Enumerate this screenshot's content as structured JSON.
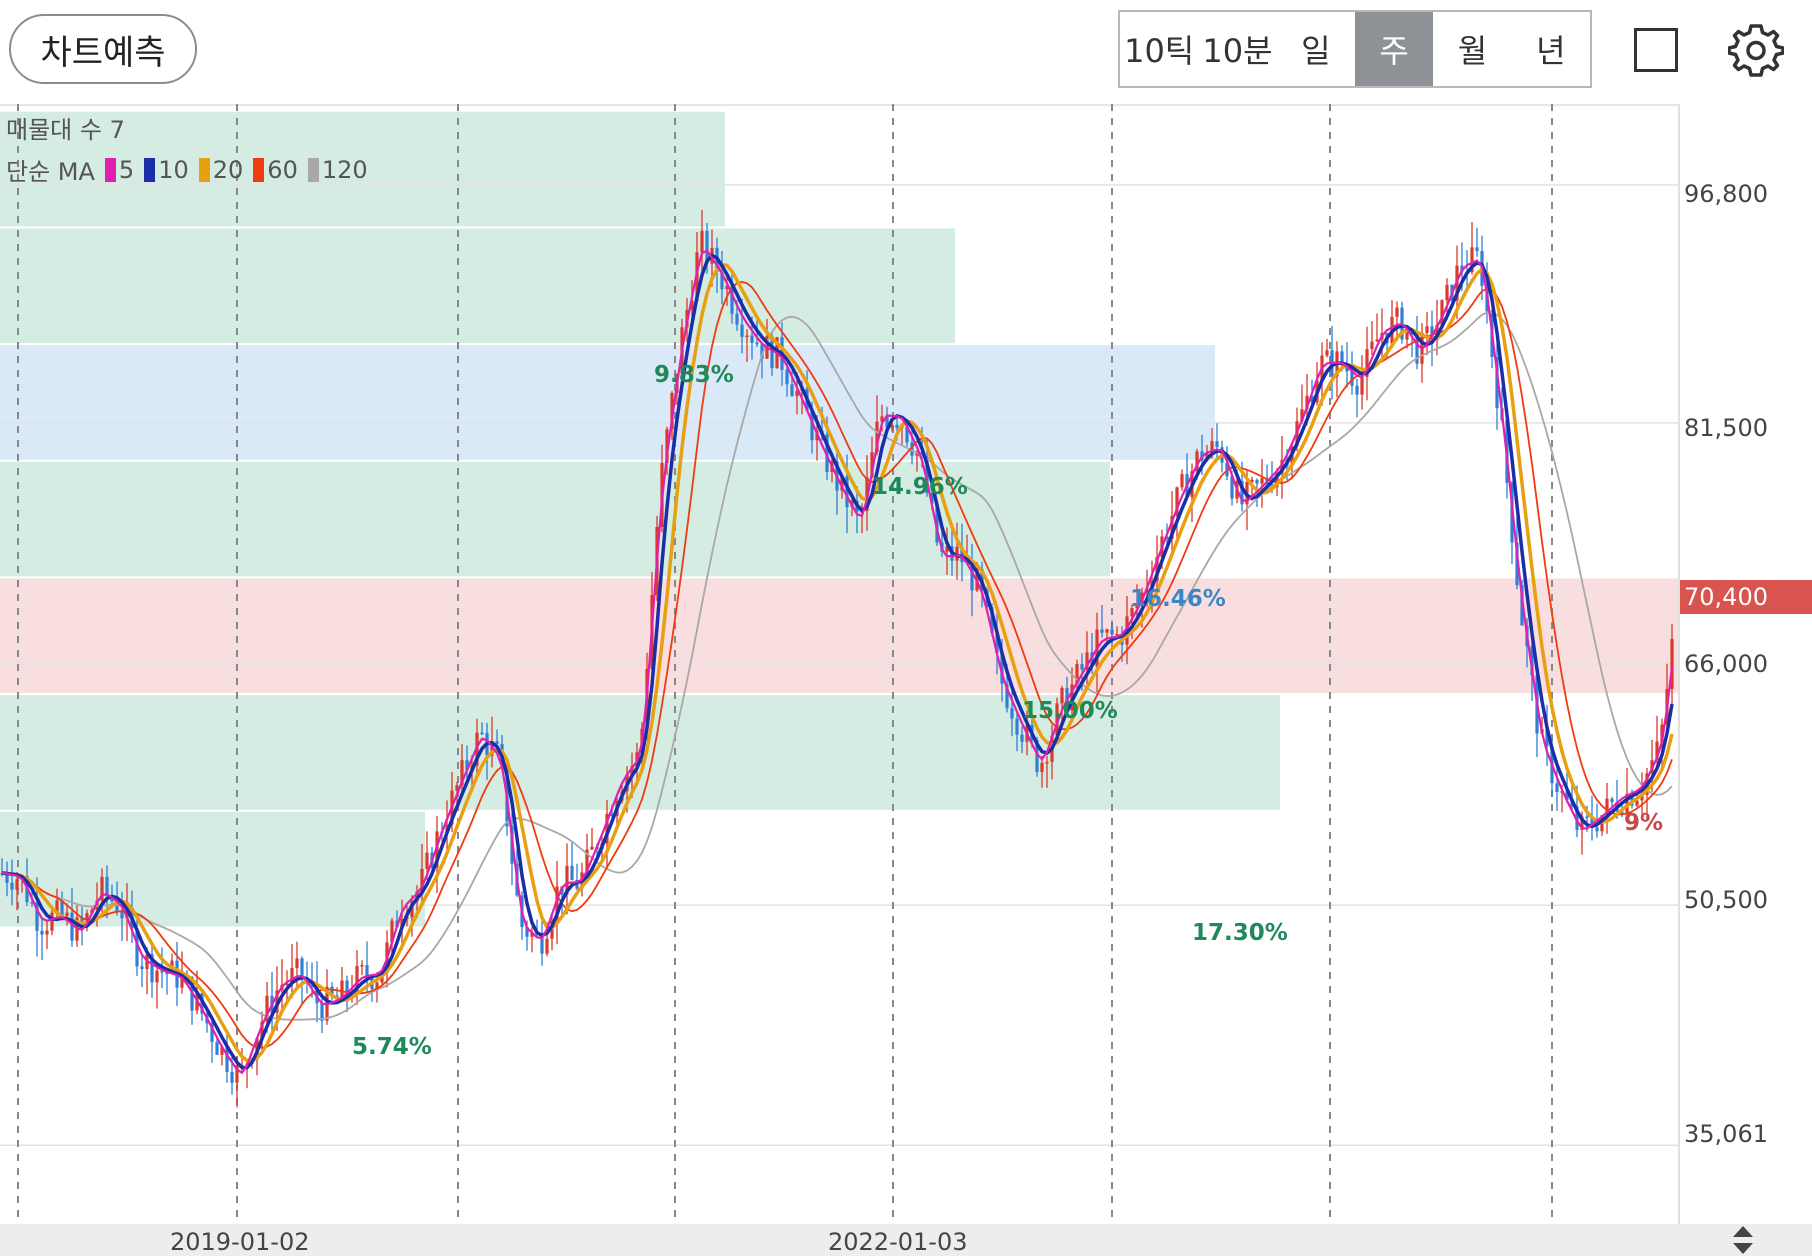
{
  "toolbar": {
    "predict_label": "차트예측",
    "tabs": [
      {
        "label": "10틱",
        "active": false
      },
      {
        "label": "10분",
        "active": false
      },
      {
        "label": "일",
        "active": false
      },
      {
        "label": "주",
        "active": true
      },
      {
        "label": "월",
        "active": false
      },
      {
        "label": "년",
        "active": false
      }
    ],
    "square_icon": "square-icon",
    "settings_icon": "gear-icon"
  },
  "overlay": {
    "volume_profile_label": "매물대 수 7",
    "ma_label": "단순 MA",
    "ma_periods": [
      {
        "label": "5",
        "color": "#e020b0"
      },
      {
        "label": "10",
        "color": "#1a2ea8"
      },
      {
        "label": "20",
        "color": "#e8a010"
      },
      {
        "label": "60",
        "color": "#f03a10"
      },
      {
        "label": "120",
        "color": "#a8a8a8"
      }
    ]
  },
  "price_axis": {
    "ticks": [
      "96,800",
      "81,500",
      "66,000",
      "50,500",
      "35,061"
    ],
    "current_price": "70,400"
  },
  "date_axis": {
    "ticks": [
      "2019-01-02",
      "2022-01-03"
    ]
  },
  "chart_data": {
    "type": "candlestick-weekly",
    "y_range": [
      30000,
      102000
    ],
    "volume_bands": [
      {
        "from": 94000,
        "to": 101500,
        "pct": "9.83%",
        "color": "green"
      },
      {
        "from": 86500,
        "to": 94000,
        "pct": "14.96%",
        "color": "green"
      },
      {
        "from": 79000,
        "to": 86500,
        "pct": "16.46%",
        "color": "blue"
      },
      {
        "from": 71500,
        "to": 79000,
        "pct": "15.00%",
        "color": "green"
      },
      {
        "from": 64000,
        "to": 71500,
        "pct": "",
        "color": "red"
      },
      {
        "from": 56500,
        "to": 64000,
        "pct": "17.30%",
        "color": "green"
      },
      {
        "from": 49000,
        "to": 56500,
        "pct": "5.74%",
        "color": "green"
      }
    ],
    "band_partial_label": "9%",
    "series": [
      {
        "name": "5",
        "color": "#e020b0"
      },
      {
        "name": "10",
        "color": "#1a2ea8"
      },
      {
        "name": "20",
        "color": "#e8a010"
      },
      {
        "name": "60",
        "color": "#f03a10"
      },
      {
        "name": "120",
        "color": "#a8a8a8"
      }
    ],
    "close_path": [
      [
        0,
        52600
      ],
      [
        20,
        52300
      ],
      [
        40,
        49400
      ],
      [
        60,
        49800
      ],
      [
        80,
        48700
      ],
      [
        100,
        51400
      ],
      [
        120,
        50500
      ],
      [
        140,
        47100
      ],
      [
        160,
        46300
      ],
      [
        180,
        45900
      ],
      [
        200,
        43800
      ],
      [
        220,
        41300
      ],
      [
        240,
        39400
      ],
      [
        260,
        42900
      ],
      [
        280,
        45400
      ],
      [
        300,
        46100
      ],
      [
        320,
        44000
      ],
      [
        340,
        44500
      ],
      [
        360,
        45900
      ],
      [
        380,
        46100
      ],
      [
        400,
        50300
      ],
      [
        420,
        51600
      ],
      [
        440,
        55300
      ],
      [
        460,
        58500
      ],
      [
        480,
        61500
      ],
      [
        500,
        59800
      ],
      [
        520,
        49300
      ],
      [
        540,
        48100
      ],
      [
        560,
        51900
      ],
      [
        580,
        52000
      ],
      [
        600,
        55100
      ],
      [
        620,
        58500
      ],
      [
        640,
        60200
      ],
      [
        660,
        77400
      ],
      [
        680,
        86500
      ],
      [
        700,
        93000
      ],
      [
        720,
        91100
      ],
      [
        740,
        88300
      ],
      [
        760,
        86500
      ],
      [
        780,
        85800
      ],
      [
        800,
        83000
      ],
      [
        820,
        80000
      ],
      [
        840,
        77300
      ],
      [
        860,
        75000
      ],
      [
        880,
        82000
      ],
      [
        900,
        81900
      ],
      [
        920,
        79200
      ],
      [
        940,
        72900
      ],
      [
        960,
        73000
      ],
      [
        980,
        70700
      ],
      [
        1000,
        65100
      ],
      [
        1020,
        62100
      ],
      [
        1040,
        59500
      ],
      [
        1060,
        63200
      ],
      [
        1080,
        65400
      ],
      [
        1100,
        67600
      ],
      [
        1120,
        67800
      ],
      [
        1140,
        70100
      ],
      [
        1160,
        73600
      ],
      [
        1180,
        76900
      ],
      [
        1200,
        79500
      ],
      [
        1220,
        79900
      ],
      [
        1240,
        76200
      ],
      [
        1260,
        77400
      ],
      [
        1280,
        78800
      ],
      [
        1300,
        81700
      ],
      [
        1320,
        85300
      ],
      [
        1340,
        85400
      ],
      [
        1360,
        84200
      ],
      [
        1380,
        87300
      ],
      [
        1400,
        88000
      ],
      [
        1420,
        86000
      ],
      [
        1440,
        88300
      ],
      [
        1460,
        91500
      ],
      [
        1480,
        92100
      ],
      [
        1500,
        82000
      ],
      [
        1520,
        69800
      ],
      [
        1540,
        61100
      ],
      [
        1560,
        57800
      ],
      [
        1580,
        55200
      ],
      [
        1600,
        56200
      ],
      [
        1620,
        57400
      ],
      [
        1640,
        58000
      ],
      [
        1660,
        60700
      ],
      [
        1678,
        70400
      ]
    ]
  }
}
